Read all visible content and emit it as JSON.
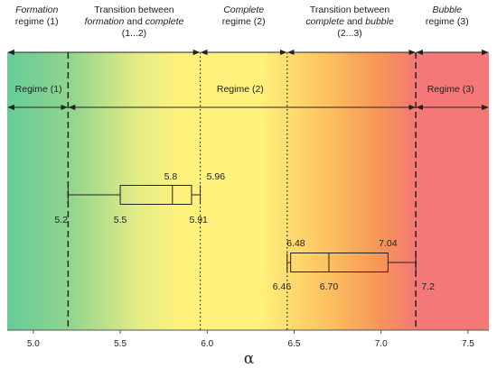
{
  "chart_data": {
    "type": "boxplot",
    "xlabel": "α",
    "xlim": [
      4.85,
      7.62
    ],
    "xticks": [
      "5.0",
      "5.5",
      "6.0",
      "6.5",
      "7.0",
      "7.5"
    ],
    "background_gradient": [
      {
        "x": 4.85,
        "color": "#66cc99"
      },
      {
        "x": 5.2,
        "color": "#8fd48e"
      },
      {
        "x": 5.6,
        "color": "#e4ec86"
      },
      {
        "x": 5.85,
        "color": "#fff27c"
      },
      {
        "x": 6.3,
        "color": "#fff27c"
      },
      {
        "x": 6.7,
        "color": "#fdc060"
      },
      {
        "x": 7.0,
        "color": "#f69458"
      },
      {
        "x": 7.2,
        "color": "#f57878"
      },
      {
        "x": 7.62,
        "color": "#f57878"
      }
    ],
    "headers": [
      {
        "id": "formation",
        "lines": [
          {
            "t": "Formation",
            "i": true
          },
          {
            "t": "regime (1)"
          }
        ],
        "x": 5.02
      },
      {
        "id": "transition12",
        "lines": [
          {
            "t": "Transition between"
          },
          {
            "t": "formation",
            "i": true,
            "tail": " and ",
            "t2": "complete",
            "i2": true
          },
          {
            "t": "(1...2)"
          }
        ],
        "x": 5.58
      },
      {
        "id": "complete",
        "lines": [
          {
            "t": "Complete",
            "i": true
          },
          {
            "t": "regime (2)"
          }
        ],
        "x": 6.21
      },
      {
        "id": "transition23",
        "lines": [
          {
            "t": "Transition between"
          },
          {
            "t": "complete",
            "i": true,
            "tail": " and ",
            "t2": "bubble",
            "i2": true
          },
          {
            "t": "(2...3)"
          }
        ],
        "x": 6.82
      },
      {
        "id": "bubble",
        "lines": [
          {
            "t": "Bubble",
            "i": true
          },
          {
            "t": "regime (3)"
          }
        ],
        "x": 7.38
      }
    ],
    "header_arrows": [
      [
        4.85,
        5.96
      ],
      [
        5.96,
        6.46
      ],
      [
        6.46,
        7.2
      ],
      [
        7.2,
        7.62
      ]
    ],
    "regime_labels": [
      {
        "text": "Regime (1)",
        "x": 5.03
      },
      {
        "text": "Regime (2)",
        "x": 6.19
      },
      {
        "text": "Regime (3)",
        "x": 7.4
      }
    ],
    "regime_arrows": [
      [
        4.85,
        5.2
      ],
      [
        5.2,
        7.2
      ],
      [
        7.2,
        7.62
      ]
    ],
    "boundaries": [
      {
        "x": 5.2,
        "style": "dashed"
      },
      {
        "x": 5.96,
        "style": "dotted"
      },
      {
        "x": 6.46,
        "style": "dotted"
      },
      {
        "x": 7.2,
        "style": "dashed"
      }
    ],
    "boxes": [
      {
        "name": "box-1",
        "min": 5.2,
        "q1": 5.5,
        "median": 5.8,
        "q3": 5.91,
        "max": 5.96,
        "labels": [
          {
            "text": "5.8",
            "x": 5.79,
            "pos": "above"
          },
          {
            "text": "5.96",
            "x": 6.05,
            "pos": "above"
          },
          {
            "text": "5.2",
            "x": 5.16,
            "pos": "below"
          },
          {
            "text": "5.5",
            "x": 5.5,
            "pos": "below"
          },
          {
            "text": "5.91",
            "x": 5.95,
            "pos": "below"
          }
        ]
      },
      {
        "name": "box-2",
        "min": 6.46,
        "q1": 6.48,
        "median": 6.7,
        "q3": 7.04,
        "max": 7.2,
        "labels": [
          {
            "text": "6.48",
            "x": 6.51,
            "pos": "above"
          },
          {
            "text": "7.04",
            "x": 7.04,
            "pos": "above"
          },
          {
            "text": "6.46",
            "x": 6.43,
            "pos": "below"
          },
          {
            "text": "6.70",
            "x": 6.7,
            "pos": "below"
          },
          {
            "text": "7.2",
            "x": 7.27,
            "pos": "below"
          }
        ]
      }
    ]
  }
}
